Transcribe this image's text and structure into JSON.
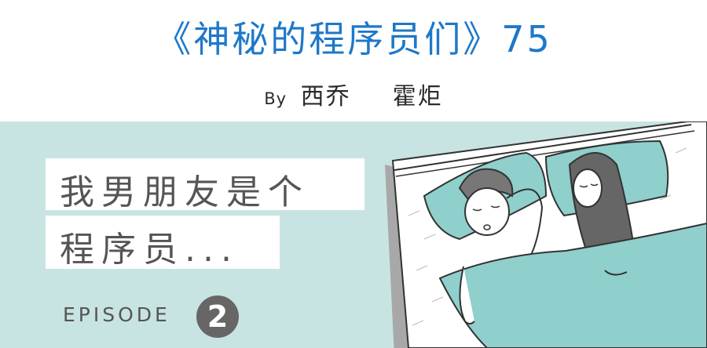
{
  "header": {
    "title": "《神秘的程序员们》75",
    "by_label": "By",
    "author1": "西乔",
    "author2": "霍炬"
  },
  "caption": {
    "line1": "我男朋友是个",
    "line2": "程序员..."
  },
  "episode": {
    "label": "EPISODE",
    "number": "2"
  },
  "colors": {
    "title_blue": "#1e78c8",
    "panel_bg": "#c8e4e2",
    "pillow_teal": "#8fcfcc",
    "text_gray": "#555555"
  }
}
